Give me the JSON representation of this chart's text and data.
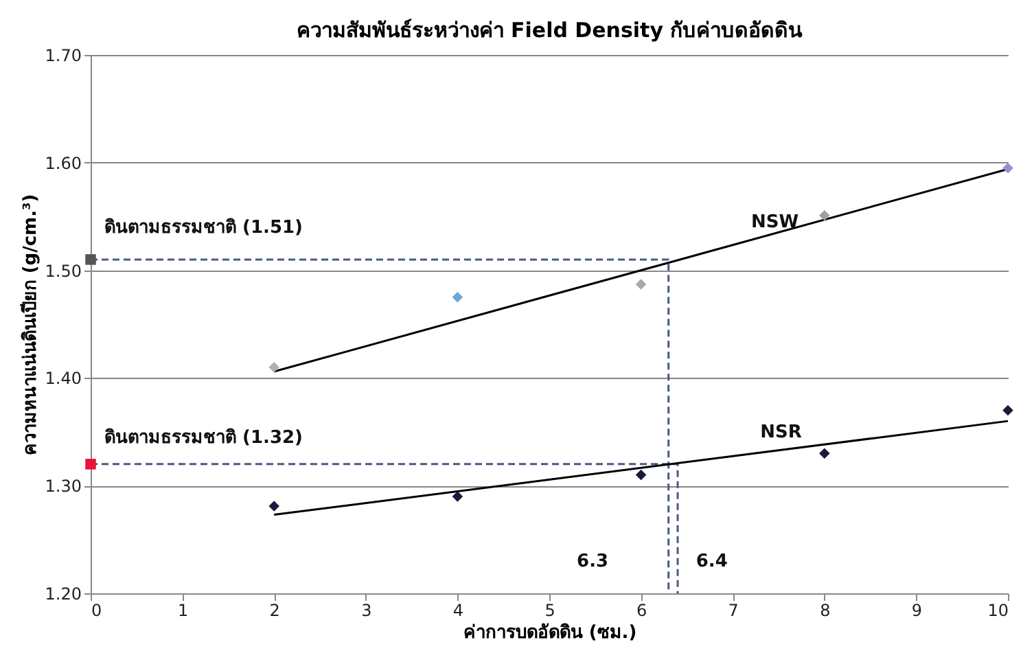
{
  "chart_data": {
    "type": "scatter",
    "title": "ความสัมพันธ์ระหว่างค่า Field Density กับค่าบดอัดดิน",
    "xlabel": "ค่าการบดอัดดิน (ซม.)",
    "ylabel": "ความหนาแน่นดินเปียก (g/cm.³)",
    "xlim": [
      0,
      10
    ],
    "xticks": [
      0,
      1,
      2,
      3,
      4,
      5,
      6,
      7,
      8,
      9,
      10
    ],
    "ylim": [
      1.2,
      1.7
    ],
    "yticks": [
      {
        "value": 1.2,
        "label": "1.20"
      },
      {
        "value": 1.3,
        "label": "1.30"
      },
      {
        "value": 1.4,
        "label": "1.40"
      },
      {
        "value": 1.5,
        "label": "1.50"
      },
      {
        "value": 1.6,
        "label": "1.60"
      },
      {
        "value": 1.7,
        "label": "1.70"
      }
    ],
    "grid": "y",
    "series": [
      {
        "type": "line",
        "color": "#4a5a84",
        "line_style": "dashed",
        "marker": "none",
        "x": [
          0,
          6.3,
          6.3
        ],
        "values": [
          1.51,
          1.51,
          1.2
        ]
      },
      {
        "type": "line",
        "color": "#4a5a84",
        "line_style": "dashed",
        "marker": "none",
        "x": [
          0,
          6.4,
          6.4
        ],
        "values": [
          1.32,
          1.32,
          1.2
        ]
      },
      {
        "type": "line",
        "color": "#000000",
        "line_style": "solid",
        "marker": "none",
        "x": [
          2,
          10
        ],
        "values": [
          1.406,
          1.594
        ]
      },
      {
        "type": "line",
        "color": "#000000",
        "line_style": "solid",
        "marker": "none",
        "x": [
          2,
          10
        ],
        "values": [
          1.273,
          1.36
        ]
      },
      {
        "marker": "diamond",
        "colors": [
          "#b0b0b0",
          "#6aa6d8",
          "#a8a8a8",
          "#a0a0a0",
          "#9090d8"
        ],
        "x": [
          2,
          4,
          6,
          8,
          10
        ],
        "values": [
          1.41,
          1.475,
          1.487,
          1.551,
          1.595
        ]
      },
      {
        "marker": "diamond",
        "color": "#1a1a3a",
        "x": [
          2,
          4,
          6,
          8,
          10
        ],
        "values": [
          1.281,
          1.29,
          1.31,
          1.33,
          1.37
        ]
      },
      {
        "marker": "square",
        "color": "#555555",
        "x": [
          0
        ],
        "values": [
          1.51
        ]
      },
      {
        "marker": "square",
        "color": "#e8143c",
        "x": [
          0
        ],
        "values": [
          1.32
        ]
      }
    ],
    "annotations": [
      "ดินตามธรรมชาติ (1.51)",
      "ดินตามธรรมชาติ (1.32)",
      "NSW",
      "NSR",
      "6.3",
      "6.4"
    ]
  }
}
